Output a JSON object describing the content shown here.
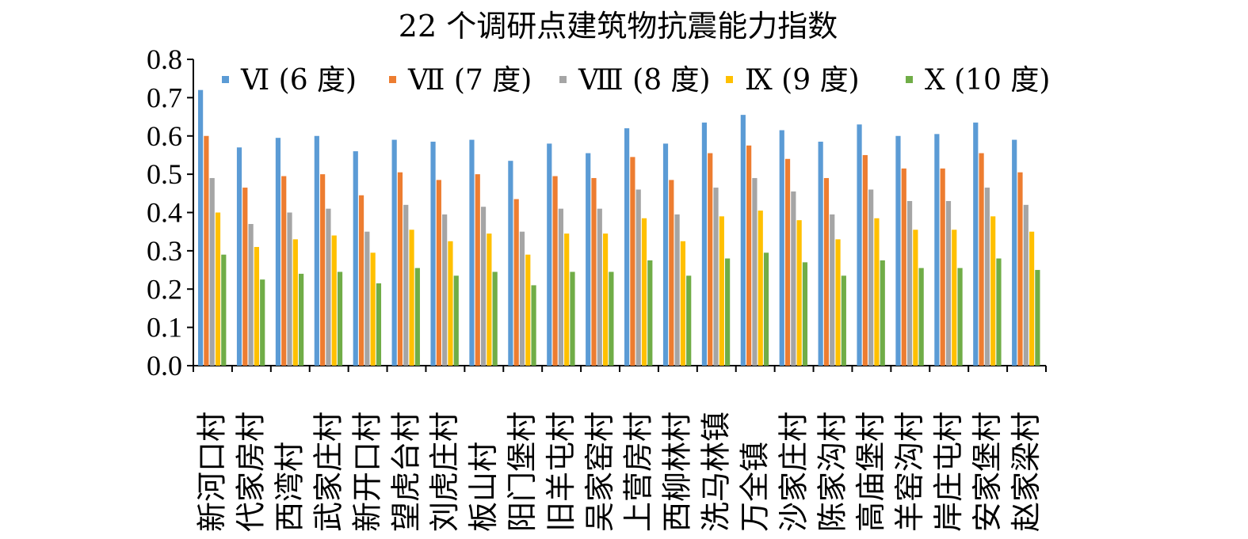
{
  "chart_data": {
    "type": "bar",
    "title": "22 个调研点建筑物抗震能力指数",
    "xlabel": "",
    "ylabel": "",
    "ylim": [
      0,
      0.8
    ],
    "y_ticks": [
      "0.0",
      "0.1",
      "0.2",
      "0.3",
      "0.4",
      "0.5",
      "0.6",
      "0.7",
      "0.8"
    ],
    "grid": false,
    "legend_position": "top",
    "categories": [
      "新河口村",
      "代家房村",
      "西湾村",
      "武家庄村",
      "新开口村",
      "望虎台村",
      "刘虎庄村",
      "板山村",
      "阳门堡村",
      "旧羊屯村",
      "吴家窑村",
      "上营房村",
      "西柳林村",
      "洗马林镇",
      "万全镇",
      "沙家庄村",
      "陈家沟村",
      "高庙堡村",
      "羊窑沟村",
      "岸庄屯村",
      "安家堡村",
      "赵家梁村"
    ],
    "series": [
      {
        "name": "Ⅵ (6 度)",
        "color": "#5B9BD5",
        "values": [
          0.72,
          0.57,
          0.595,
          0.6,
          0.56,
          0.59,
          0.585,
          0.59,
          0.535,
          0.58,
          0.555,
          0.62,
          0.58,
          0.635,
          0.655,
          0.615,
          0.585,
          0.63,
          0.6,
          0.605,
          0.635,
          0.59
        ]
      },
      {
        "name": "Ⅶ (7 度)",
        "color": "#ED7D31",
        "values": [
          0.6,
          0.465,
          0.495,
          0.5,
          0.445,
          0.505,
          0.485,
          0.5,
          0.435,
          0.495,
          0.49,
          0.545,
          0.485,
          0.555,
          0.575,
          0.54,
          0.49,
          0.55,
          0.515,
          0.515,
          0.555,
          0.505
        ]
      },
      {
        "name": "Ⅷ (8 度)",
        "color": "#A5A5A5",
        "values": [
          0.49,
          0.37,
          0.4,
          0.41,
          0.35,
          0.42,
          0.395,
          0.415,
          0.35,
          0.41,
          0.41,
          0.46,
          0.395,
          0.465,
          0.49,
          0.455,
          0.395,
          0.46,
          0.43,
          0.43,
          0.465,
          0.42
        ]
      },
      {
        "name": "Ⅸ (9 度)",
        "color": "#FFC000",
        "values": [
          0.4,
          0.31,
          0.33,
          0.34,
          0.295,
          0.355,
          0.325,
          0.345,
          0.29,
          0.345,
          0.345,
          0.385,
          0.325,
          0.39,
          0.405,
          0.38,
          0.33,
          0.385,
          0.355,
          0.355,
          0.39,
          0.35
        ]
      },
      {
        "name": "Ⅹ (10 度)",
        "color": "#70AD47",
        "values": [
          0.29,
          0.225,
          0.24,
          0.245,
          0.215,
          0.255,
          0.235,
          0.245,
          0.21,
          0.245,
          0.245,
          0.275,
          0.235,
          0.28,
          0.295,
          0.27,
          0.235,
          0.275,
          0.255,
          0.255,
          0.28,
          0.25
        ]
      }
    ]
  }
}
